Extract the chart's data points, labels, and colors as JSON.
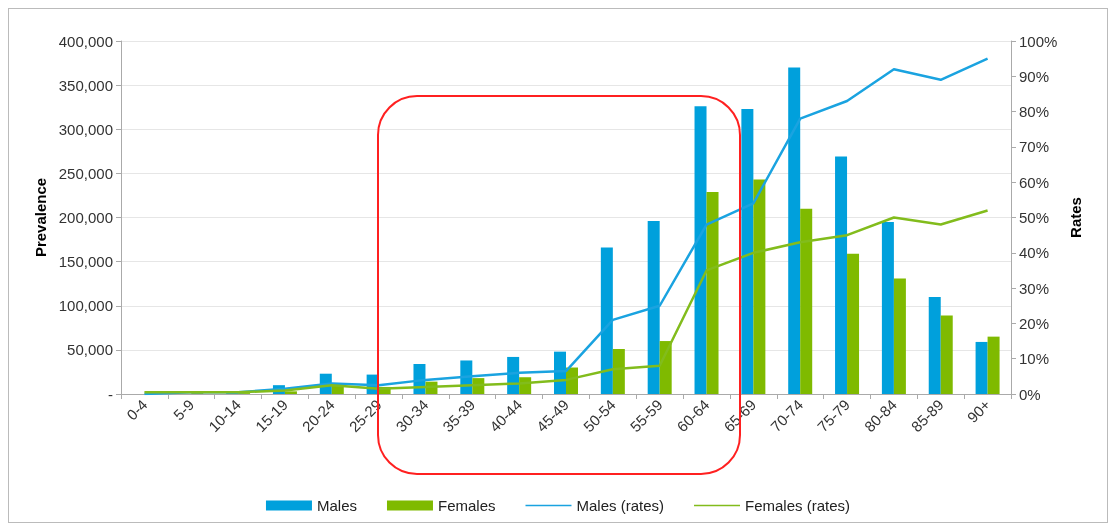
{
  "chart_data": {
    "type": "bar",
    "ylabel": "Prevalence",
    "y2label": "Rates",
    "categories": [
      "0-4",
      "5-9",
      "10-14",
      "15-19",
      "20-24",
      "25-29",
      "30-34",
      "35-39",
      "40-44",
      "45-49",
      "50-54",
      "55-59",
      "60-64",
      "65-69",
      "70-74",
      "75-79",
      "80-84",
      "85-89",
      "90+"
    ],
    "series": [
      {
        "name": "Males",
        "color": "#00a0dc",
        "values": [
          0,
          0,
          1000,
          10000,
          23000,
          22000,
          34000,
          38000,
          42000,
          48000,
          166000,
          196000,
          326000,
          323000,
          370000,
          269000,
          195000,
          110000,
          59000
        ]
      },
      {
        "name": "Females",
        "color": "#7fba00",
        "values": [
          null,
          1000,
          1000,
          3000,
          10000,
          8000,
          14000,
          18000,
          19000,
          30000,
          51000,
          60000,
          229000,
          243000,
          210000,
          159000,
          131000,
          89000,
          65000
        ]
      },
      {
        "name": "Males (rates)",
        "type": "line",
        "axis": "y2",
        "color": "#1aa3e0",
        "values": [
          0,
          0.5,
          0.5,
          1.5,
          3,
          2.5,
          4,
          5,
          6,
          6.5,
          21,
          25,
          48,
          54,
          78,
          83,
          92,
          89,
          95
        ]
      },
      {
        "name": "Females (rates)",
        "type": "line",
        "axis": "y2",
        "color": "#82bc1c",
        "values": [
          0.5,
          0.5,
          0.5,
          1,
          2.5,
          1.5,
          2,
          2.5,
          3,
          4,
          7,
          8,
          35,
          40,
          43,
          45,
          50,
          48,
          52
        ]
      }
    ],
    "ylim": [
      0,
      400000
    ],
    "yticks": [
      {
        "value": 0,
        "label": "-"
      },
      {
        "value": 50000,
        "label": "50,000"
      },
      {
        "value": 100000,
        "label": "100,000"
      },
      {
        "value": 150000,
        "label": "150,000"
      },
      {
        "value": 200000,
        "label": "200,000"
      },
      {
        "value": 250000,
        "label": "250,000"
      },
      {
        "value": 300000,
        "label": "300,000"
      },
      {
        "value": 350000,
        "label": "350,000"
      },
      {
        "value": 400000,
        "label": "400,000"
      }
    ],
    "y2lim": [
      0,
      100
    ],
    "y2ticks": [
      {
        "value": 0,
        "label": "0%"
      },
      {
        "value": 10,
        "label": "10%"
      },
      {
        "value": 20,
        "label": "20%"
      },
      {
        "value": 30,
        "label": "30%"
      },
      {
        "value": 40,
        "label": "40%"
      },
      {
        "value": 50,
        "label": "50%"
      },
      {
        "value": 60,
        "label": "60%"
      },
      {
        "value": 70,
        "label": "70%"
      },
      {
        "value": 80,
        "label": "80%"
      },
      {
        "value": 90,
        "label": "90%"
      },
      {
        "value": 100,
        "label": "100%"
      }
    ],
    "grid": "y",
    "legend": "bottom",
    "marker": "none",
    "line_style": "solid"
  }
}
